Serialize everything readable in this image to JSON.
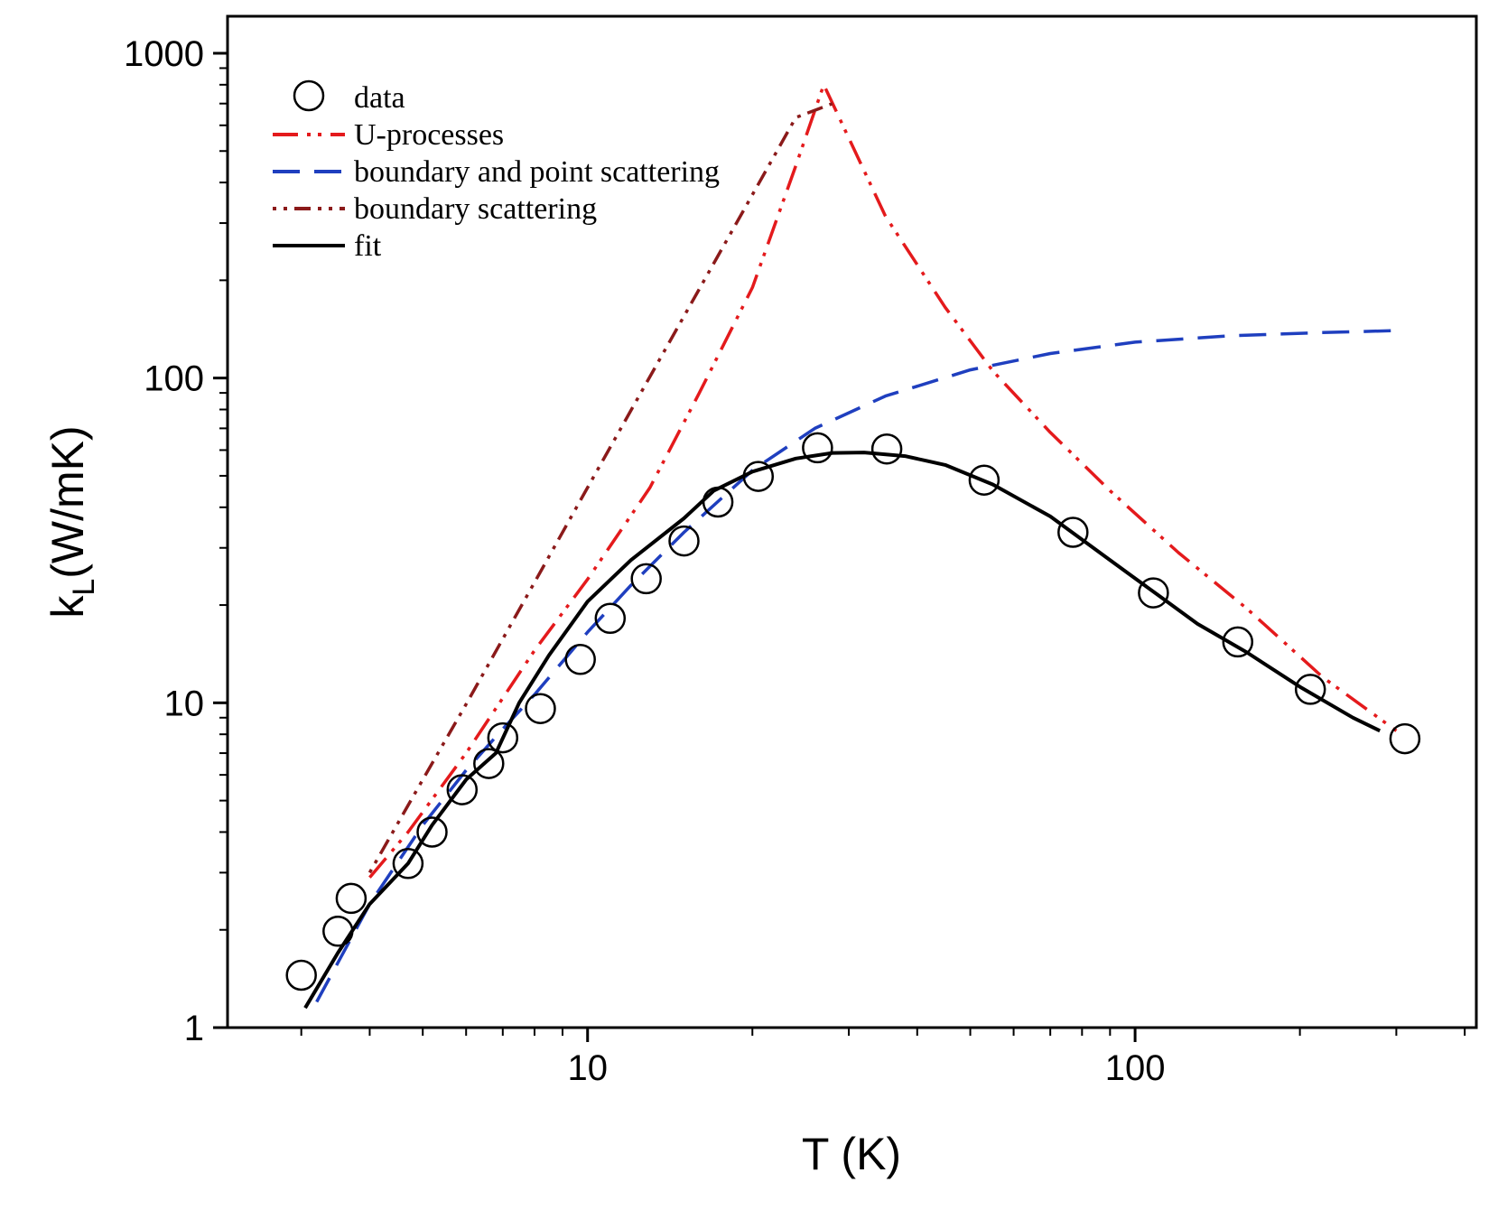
{
  "chart_data": {
    "type": "scatter",
    "xscale": "log",
    "yscale": "log",
    "xlim": [
      2.2,
      420
    ],
    "ylim": [
      1,
      1300
    ],
    "xlabel": "T (K)",
    "ylabel_main": "k",
    "ylabel_sub": "L",
    "ylabel_rest": "(W/mK)",
    "x_ticks": [
      {
        "value": 10,
        "label": "10"
      },
      {
        "value": 100,
        "label": "100"
      }
    ],
    "y_ticks": [
      {
        "value": 1,
        "label": "1"
      },
      {
        "value": 10,
        "label": "10"
      },
      {
        "value": 100,
        "label": "100"
      },
      {
        "value": 1000,
        "label": "1000"
      }
    ],
    "grid": false,
    "legend_position": "top-left",
    "series": [
      {
        "name": "data",
        "kind": "markers",
        "color": "#000000",
        "x": [
          3.0,
          3.5,
          3.7,
          4.7,
          5.2,
          5.9,
          6.6,
          7.0,
          8.2,
          9.7,
          11.0,
          12.8,
          15.0,
          17.3,
          20.5,
          26.3,
          35.2,
          53.0,
          77.0,
          108.0,
          154.0,
          209.0,
          311.0
        ],
        "y": [
          1.45,
          1.98,
          2.5,
          3.2,
          4.0,
          5.4,
          6.5,
          7.8,
          9.6,
          13.6,
          18.2,
          24.1,
          31.5,
          41.5,
          49.8,
          61.0,
          60.5,
          48.5,
          33.5,
          21.8,
          15.4,
          11.0,
          7.75
        ]
      },
      {
        "name": "U-processes",
        "kind": "line",
        "dash": "dash-dot-dot",
        "color": "#e41a1c",
        "x": [
          4.0,
          4.7,
          6.0,
          8.0,
          10.0,
          13.0,
          16.0,
          20.0,
          24.0,
          27.0,
          35.0,
          45.0,
          55.0,
          70.0,
          90.0,
          120.0,
          160.0,
          220.0,
          300.0
        ],
        "y": [
          2.9,
          4.0,
          7.0,
          14.5,
          24.0,
          46.0,
          90.0,
          190.0,
          450.0,
          800.0,
          315.0,
          165.0,
          105.0,
          68.0,
          45.0,
          29.0,
          19.5,
          12.0,
          8.2
        ]
      },
      {
        "name": "boundary and point scattering",
        "kind": "line",
        "dash": "dash",
        "color": "#1f3fbf",
        "x": [
          3.2,
          4.0,
          5.0,
          6.0,
          7.0,
          8.0,
          10.0,
          12.0,
          15.0,
          20.0,
          26.0,
          35.0,
          50.0,
          70.0,
          100.0,
          150.0,
          220.0,
          300.0
        ],
        "y": [
          1.2,
          2.4,
          4.2,
          6.2,
          8.3,
          10.6,
          16.5,
          23.0,
          33.5,
          52.0,
          70.0,
          88.0,
          106.0,
          119.0,
          129.0,
          135.0,
          138.0,
          140.0
        ]
      },
      {
        "name": "boundary scattering",
        "kind": "line",
        "dash": "dot-dot-dash",
        "color": "#8b1a1a",
        "x": [
          4.0,
          5.0,
          6.0,
          8.0,
          10.0,
          13.0,
          16.0,
          20.0,
          24.0,
          28.0
        ],
        "y": [
          3.0,
          5.8,
          9.9,
          23.5,
          46.0,
          101.0,
          188.0,
          367.0,
          634.0,
          700.0
        ]
      },
      {
        "name": "fit",
        "kind": "line",
        "dash": "solid",
        "color": "#000000",
        "x": [
          3.05,
          3.5,
          4.0,
          4.7,
          5.2,
          6.0,
          6.8,
          7.5,
          8.5,
          10.0,
          12.0,
          15.0,
          17.0,
          20.0,
          24.0,
          28.0,
          32.0,
          38.0,
          45.0,
          55.0,
          70.0,
          90.0,
          110.0,
          130.0,
          160.0,
          200.0,
          250.0,
          280.0
        ],
        "y": [
          1.15,
          1.7,
          2.4,
          3.2,
          4.2,
          5.8,
          7.0,
          10.0,
          14.0,
          20.5,
          27.5,
          37.0,
          45.0,
          51.5,
          56.5,
          58.8,
          59.0,
          57.5,
          54.0,
          47.0,
          37.5,
          27.5,
          21.5,
          17.5,
          14.3,
          11.2,
          9.0,
          8.2
        ]
      }
    ]
  }
}
